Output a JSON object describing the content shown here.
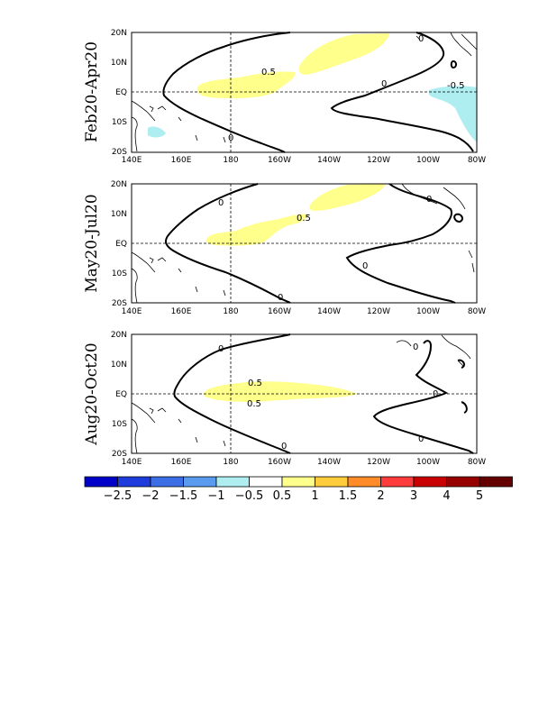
{
  "panels": [
    {
      "title": "Feb20-Apr20"
    },
    {
      "title": "May20-Jul20"
    },
    {
      "title": "Aug20-Oct20"
    }
  ],
  "lat_labels": [
    "20N",
    "10N",
    "EQ",
    "10S",
    "20S"
  ],
  "lon_labels": [
    "140E",
    "160E",
    "180",
    "160W",
    "140W",
    "120W",
    "100W",
    "80W"
  ],
  "contour_labels": {
    "p1_pos": "0.5",
    "p1_neg": "-0.5",
    "p2_pos": "0.5",
    "p3_top": "0.5",
    "p3_bot": "0.5",
    "zero": "0"
  },
  "colorbar": {
    "colors": [
      "#0000c8",
      "#1e3cdc",
      "#3c6ee6",
      "#5a9bf0",
      "#aeeef0",
      "#ffffff",
      "#ffff8c",
      "#ffcd3c",
      "#ff8c28",
      "#ff3c3c",
      "#c80000",
      "#960000",
      "#640000"
    ],
    "labels": [
      "-2.5",
      "-2",
      "-1.5",
      "-1",
      "-0.5",
      "0.5",
      "1",
      "1.5",
      "2",
      "3",
      "4",
      "5"
    ]
  }
}
